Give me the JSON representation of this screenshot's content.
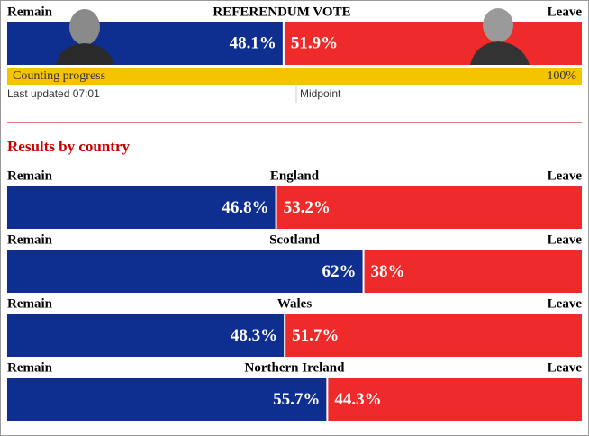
{
  "header": {
    "title": "REFERENDUM VOTE",
    "remain_label": "Remain",
    "leave_label": "Leave",
    "remain": 48.1,
    "remain_value_label": "48.1%",
    "leave": 51.9,
    "leave_value_label": "51.9%",
    "progress_label": "Counting progress",
    "progress": 100,
    "progress_value_label": "100%",
    "updated": "Last updated 07:01",
    "midpoint": "Midpoint"
  },
  "section_title": "Results by country",
  "countries": [
    {
      "name": "England",
      "remain": 46.8,
      "remain_value_label": "46.8%",
      "leave": 53.2,
      "leave_value_label": "53.2%"
    },
    {
      "name": "Scotland",
      "remain": 62,
      "remain_value_label": "62%",
      "leave": 38,
      "leave_value_label": "38%"
    },
    {
      "name": "Wales",
      "remain": 48.3,
      "remain_value_label": "48.3%",
      "leave": 51.7,
      "leave_value_label": "51.7%"
    },
    {
      "name": "Northern Ireland",
      "remain": 55.7,
      "remain_value_label": "55.7%",
      "leave": 44.3,
      "leave_value_label": "44.3%"
    }
  ]
}
